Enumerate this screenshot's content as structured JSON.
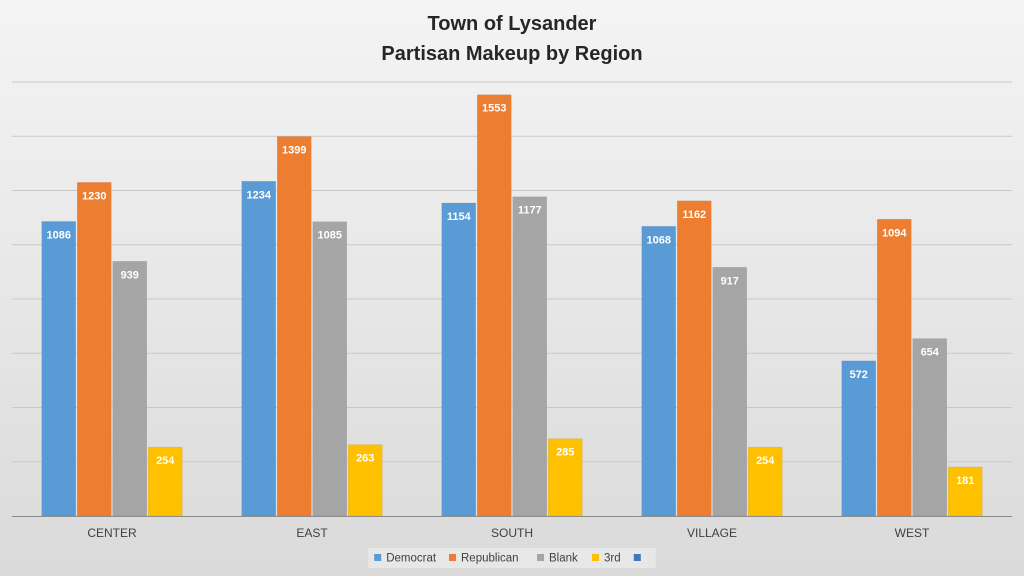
{
  "chart_data": {
    "type": "bar",
    "title": [
      "Town of Lysander",
      "Partisan Makeup by Region"
    ],
    "categories": [
      "CENTER",
      "EAST",
      "SOUTH",
      "VILLAGE",
      "WEST"
    ],
    "series": [
      {
        "name": "Democrat",
        "color": "#5b9bd5",
        "values": [
          1086,
          1234,
          1154,
          1068,
          572
        ]
      },
      {
        "name": "Republican",
        "color": "#ed7d31",
        "values": [
          1230,
          1399,
          1553,
          1162,
          1094
        ]
      },
      {
        "name": "Blank",
        "color": "#a5a5a5",
        "values": [
          939,
          1085,
          1177,
          917,
          654
        ]
      },
      {
        "name": "3rd",
        "color": "#ffc000",
        "values": [
          254,
          263,
          285,
          254,
          181
        ]
      }
    ],
    "legend_extra": [
      {
        "name": "",
        "color": "#4472c4"
      }
    ],
    "ylim": [
      0,
      1600
    ],
    "y_gridline_step": 200,
    "grid": true,
    "legend_position": "bottom",
    "data_labels": true
  }
}
